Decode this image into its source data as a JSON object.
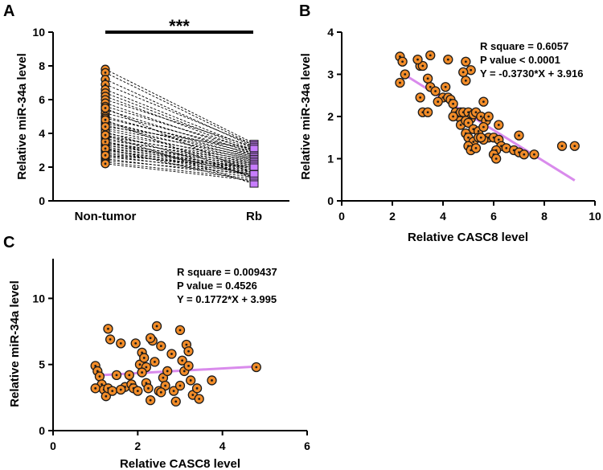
{
  "chart_data": [
    {
      "panel": "A",
      "type": "paired-dot",
      "categories": [
        "Non-tumor",
        "Rb"
      ],
      "ylabel": "Relative miR-34a level",
      "ylim": [
        0,
        10
      ],
      "yticks": [
        "0",
        "2",
        "4",
        "6",
        "8",
        "10"
      ],
      "significance": "***",
      "colors": {
        "non_tumor": "#f28c28",
        "rb": "#c77dff",
        "line": "#000000"
      },
      "pairs": [
        [
          7.8,
          3.4
        ],
        [
          7.6,
          3.3
        ],
        [
          7.2,
          3.2
        ],
        [
          6.9,
          3.3
        ],
        [
          6.6,
          3.1
        ],
        [
          6.4,
          3.0
        ],
        [
          6.2,
          2.9
        ],
        [
          6.0,
          3.2
        ],
        [
          5.8,
          2.8
        ],
        [
          5.6,
          3.0
        ],
        [
          5.4,
          2.7
        ],
        [
          5.2,
          2.9
        ],
        [
          5.0,
          2.6
        ],
        [
          4.9,
          2.8
        ],
        [
          4.7,
          2.5
        ],
        [
          4.6,
          2.7
        ],
        [
          4.5,
          2.4
        ],
        [
          4.3,
          2.6
        ],
        [
          4.2,
          2.3
        ],
        [
          4.0,
          2.5
        ],
        [
          3.9,
          2.2
        ],
        [
          3.8,
          2.4
        ],
        [
          3.7,
          2.1
        ],
        [
          3.6,
          2.3
        ],
        [
          3.5,
          2.0
        ],
        [
          3.4,
          2.2
        ],
        [
          3.3,
          1.9
        ],
        [
          3.3,
          2.1
        ],
        [
          3.2,
          1.8
        ],
        [
          3.1,
          2.0
        ],
        [
          3.0,
          1.7
        ],
        [
          3.0,
          1.9
        ],
        [
          2.9,
          1.6
        ],
        [
          2.8,
          1.8
        ],
        [
          2.7,
          1.5
        ],
        [
          2.6,
          1.7
        ],
        [
          2.5,
          1.4
        ],
        [
          2.4,
          1.6
        ],
        [
          2.3,
          1.3
        ],
        [
          2.2,
          1.2
        ],
        [
          3.5,
          1.5
        ],
        [
          4.1,
          1.4
        ],
        [
          4.8,
          1.3
        ],
        [
          5.5,
          1.6
        ],
        [
          3.1,
          1.1
        ],
        [
          2.7,
          2.0
        ],
        [
          3.9,
          1.0
        ],
        [
          4.4,
          3.1
        ]
      ]
    },
    {
      "panel": "B",
      "type": "scatter",
      "xlabel": "Relative CASC8 level",
      "ylabel": "Relative miR-34a level",
      "xlim": [
        0,
        10
      ],
      "ylim": [
        0,
        4
      ],
      "xticks": [
        "0",
        "2",
        "4",
        "6",
        "8",
        "10"
      ],
      "yticks": [
        "0",
        "1",
        "2",
        "3",
        "4"
      ],
      "stats": [
        "R square = 0.6057",
        "P value < 0.0001",
        "Y = -0.3730*X + 3.916"
      ],
      "fit": {
        "slope": -0.373,
        "intercept": 3.916,
        "x_range": [
          2.4,
          9.2
        ]
      },
      "colors": {
        "point": "#f28c28",
        "fit": "#d98bec"
      },
      "points": [
        [
          2.3,
          3.42
        ],
        [
          2.4,
          3.3
        ],
        [
          2.5,
          3.0
        ],
        [
          2.3,
          2.8
        ],
        [
          3.5,
          3.45
        ],
        [
          3.1,
          3.2
        ],
        [
          3.2,
          3.2
        ],
        [
          3.0,
          3.35
        ],
        [
          4.2,
          3.35
        ],
        [
          4.9,
          3.3
        ],
        [
          5.1,
          3.1
        ],
        [
          4.8,
          3.05
        ],
        [
          3.4,
          2.9
        ],
        [
          3.5,
          2.7
        ],
        [
          3.7,
          2.6
        ],
        [
          3.1,
          2.45
        ],
        [
          4.0,
          2.45
        ],
        [
          4.2,
          2.45
        ],
        [
          4.3,
          2.4
        ],
        [
          3.8,
          2.35
        ],
        [
          4.1,
          2.7
        ],
        [
          4.9,
          2.85
        ],
        [
          3.2,
          2.1
        ],
        [
          3.4,
          2.1
        ],
        [
          4.4,
          2.3
        ],
        [
          4.5,
          2.1
        ],
        [
          4.6,
          2.0
        ],
        [
          4.7,
          2.1
        ],
        [
          4.4,
          2.0
        ],
        [
          4.8,
          2.1
        ],
        [
          5.0,
          2.1
        ],
        [
          5.1,
          1.95
        ],
        [
          5.2,
          2.05
        ],
        [
          5.3,
          2.1
        ],
        [
          5.5,
          2.0
        ],
        [
          5.6,
          2.35
        ],
        [
          5.7,
          1.9
        ],
        [
          5.8,
          2.0
        ],
        [
          4.7,
          1.8
        ],
        [
          4.9,
          1.9
        ],
        [
          5.0,
          1.85
        ],
        [
          5.2,
          1.7
        ],
        [
          5.4,
          1.65
        ],
        [
          5.6,
          1.75
        ],
        [
          5.8,
          1.5
        ],
        [
          4.9,
          1.6
        ],
        [
          5.0,
          1.5
        ],
        [
          5.2,
          1.4
        ],
        [
          5.4,
          1.5
        ],
        [
          5.6,
          1.45
        ],
        [
          6.0,
          1.5
        ],
        [
          6.2,
          1.45
        ],
        [
          6.3,
          1.3
        ],
        [
          6.1,
          1.2
        ],
        [
          5.0,
          1.3
        ],
        [
          5.1,
          1.2
        ],
        [
          5.3,
          1.25
        ],
        [
          5.5,
          1.5
        ],
        [
          6.2,
          1.8
        ],
        [
          6.0,
          1.1
        ],
        [
          6.1,
          1.0
        ],
        [
          6.5,
          1.25
        ],
        [
          6.8,
          1.2
        ],
        [
          7.0,
          1.15
        ],
        [
          7.2,
          1.1
        ],
        [
          7.6,
          1.1
        ],
        [
          7.0,
          1.55
        ],
        [
          8.7,
          1.3
        ],
        [
          9.2,
          1.3
        ]
      ]
    },
    {
      "panel": "C",
      "type": "scatter",
      "xlabel": "Relative CASC8 level",
      "ylabel": "Relative miR-34a level",
      "xlim": [
        0,
        6
      ],
      "ylim": [
        0,
        13
      ],
      "xticks": [
        "0",
        "2",
        "4",
        "6"
      ],
      "yticks": [
        "0",
        "5",
        "10"
      ],
      "stats": [
        "R square = 0.009437",
        "P value = 0.4526",
        "Y = 0.1772*X + 3.995"
      ],
      "fit": {
        "slope": 0.1772,
        "intercept": 3.995,
        "x_range": [
          1.0,
          4.8
        ]
      },
      "colors": {
        "point": "#f28c28",
        "fit": "#d98bec"
      },
      "points": [
        [
          1.0,
          4.9
        ],
        [
          1.05,
          4.5
        ],
        [
          1.1,
          4.1
        ],
        [
          1.15,
          3.5
        ],
        [
          1.0,
          3.2
        ],
        [
          1.2,
          3.1
        ],
        [
          1.25,
          2.6
        ],
        [
          1.3,
          7.7
        ],
        [
          1.35,
          6.9
        ],
        [
          1.3,
          3.2
        ],
        [
          1.4,
          3.0
        ],
        [
          1.5,
          4.2
        ],
        [
          1.6,
          6.6
        ],
        [
          1.7,
          3.3
        ],
        [
          1.8,
          4.2
        ],
        [
          1.85,
          3.5
        ],
        [
          1.9,
          3.2
        ],
        [
          1.95,
          6.6
        ],
        [
          2.0,
          3.0
        ],
        [
          2.05,
          5.0
        ],
        [
          2.1,
          5.9
        ],
        [
          2.15,
          5.5
        ],
        [
          2.2,
          4.8
        ],
        [
          2.2,
          3.6
        ],
        [
          2.25,
          3.2
        ],
        [
          2.3,
          2.3
        ],
        [
          2.35,
          6.8
        ],
        [
          2.4,
          5.2
        ],
        [
          2.45,
          7.9
        ],
        [
          2.5,
          3.0
        ],
        [
          2.55,
          6.4
        ],
        [
          2.6,
          4.0
        ],
        [
          2.65,
          3.4
        ],
        [
          2.7,
          4.5
        ],
        [
          2.8,
          5.8
        ],
        [
          2.85,
          3.0
        ],
        [
          2.9,
          2.2
        ],
        [
          3.0,
          7.6
        ],
        [
          3.05,
          5.3
        ],
        [
          3.1,
          4.5
        ],
        [
          3.15,
          6.5
        ],
        [
          3.2,
          6.0
        ],
        [
          3.25,
          3.8
        ],
        [
          3.3,
          2.7
        ],
        [
          3.4,
          3.2
        ],
        [
          3.45,
          2.4
        ],
        [
          3.2,
          4.9
        ],
        [
          3.0,
          3.4
        ],
        [
          2.55,
          2.9
        ],
        [
          2.1,
          4.4
        ],
        [
          1.6,
          3.1
        ],
        [
          3.75,
          3.8
        ],
        [
          4.8,
          4.8
        ],
        [
          2.3,
          7.0
        ]
      ]
    }
  ]
}
